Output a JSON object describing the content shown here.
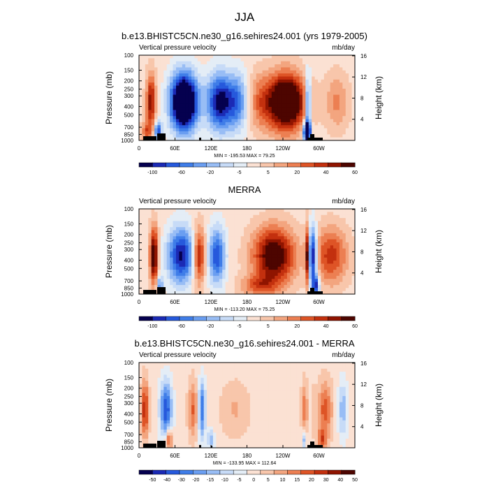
{
  "figure": {
    "season": "JJA"
  },
  "chart_data": [
    {
      "type": "heatmap",
      "title": "b.e13.BHISTC5CN.ne30_g16.sehires24.001 (yrs 1979-2005)",
      "variable": "Vertical pressure velocity",
      "units": "mb/day",
      "ylabel": "Pressure (mb)",
      "ylabel_right": "Height (km)",
      "y_ticks": [
        "100",
        "150",
        "200",
        "250",
        "300",
        "400",
        "500",
        "700",
        "850",
        "1000"
      ],
      "y_ticks_right": [
        "16",
        "12",
        "8",
        "4"
      ],
      "x_ticks": [
        "0",
        "60E",
        "120E",
        "180",
        "120W",
        "60W"
      ],
      "stats": "MIN = -195.53   MAX = 79.25",
      "colorbar": {
        "labels": [
          "-100",
          "-60",
          "-20",
          "-5",
          "5",
          "20",
          "40",
          "60"
        ],
        "colors": [
          "#05004f",
          "#1b2ab5",
          "#2659dc",
          "#3f7de8",
          "#6a9ef1",
          "#98bdf5",
          "#c7dbf7",
          "#e4edf6",
          "#fbe1d3",
          "#f8c6ab",
          "#f3a57f",
          "#ec7f52",
          "#de5426",
          "#c3300e",
          "#8f1400",
          "#4d0500"
        ]
      }
    },
    {
      "type": "heatmap",
      "title": "MERRA",
      "variable": "Vertical pressure velocity",
      "units": "mb/day",
      "ylabel": "Pressure (mb)",
      "ylabel_right": "Height (km)",
      "y_ticks": [
        "100",
        "150",
        "200",
        "250",
        "300",
        "400",
        "500",
        "700",
        "850",
        "1000"
      ],
      "y_ticks_right": [
        "16",
        "12",
        "8",
        "4"
      ],
      "x_ticks": [
        "0",
        "60E",
        "120E",
        "180",
        "120W",
        "60W"
      ],
      "stats": "MIN = -113.20   MAX = 75.25",
      "colorbar": {
        "labels": [
          "-100",
          "-60",
          "-20",
          "-5",
          "5",
          "20",
          "40",
          "60"
        ],
        "colors": [
          "#05004f",
          "#1b2ab5",
          "#2659dc",
          "#3f7de8",
          "#6a9ef1",
          "#98bdf5",
          "#c7dbf7",
          "#e4edf6",
          "#fbe1d3",
          "#f8c6ab",
          "#f3a57f",
          "#ec7f52",
          "#de5426",
          "#c3300e",
          "#8f1400",
          "#4d0500"
        ]
      }
    },
    {
      "type": "heatmap",
      "title": "b.e13.BHISTC5CN.ne30_g16.sehires24.001 - MERRA",
      "variable": "Vertical pressure velocity",
      "units": "mb/day",
      "ylabel": "Pressure (mb)",
      "ylabel_right": "Height (km)",
      "y_ticks": [
        "100",
        "150",
        "200",
        "250",
        "300",
        "400",
        "500",
        "700",
        "850",
        "1000"
      ],
      "y_ticks_right": [
        "16",
        "12",
        "8",
        "4"
      ],
      "x_ticks": [
        "0",
        "60E",
        "120E",
        "180",
        "120W",
        "60W"
      ],
      "stats": "MIN = -133.95   MAX = 112.64",
      "colorbar": {
        "labels": [
          "-50",
          "-40",
          "-30",
          "-20",
          "-15",
          "-10",
          "-5",
          "0",
          "5",
          "10",
          "15",
          "20",
          "30",
          "40",
          "50"
        ],
        "colors": [
          "#05004f",
          "#1b2ab5",
          "#2659dc",
          "#3f7de8",
          "#6a9ef1",
          "#98bdf5",
          "#c7dbf7",
          "#e4edf6",
          "#fbe1d3",
          "#f8c6ab",
          "#f3a57f",
          "#ec7f52",
          "#de5426",
          "#c3300e",
          "#8f1400",
          "#4d0500"
        ]
      }
    }
  ]
}
